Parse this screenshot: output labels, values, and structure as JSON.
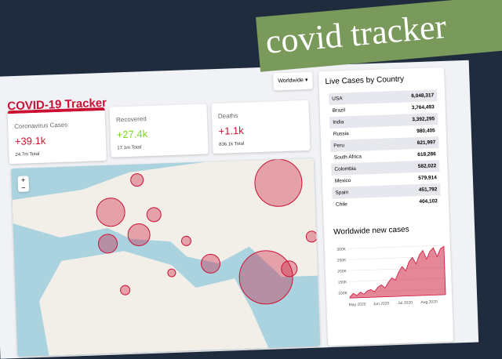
{
  "banner": "covid tracker",
  "app": {
    "title": "COVID-19 Tracker",
    "dropdown": "Worldwide",
    "cards": [
      {
        "title": "Coronavirus Cases",
        "today": "+39.1k",
        "total": "24.7m Total"
      },
      {
        "title": "Recovered",
        "today": "+27.4k",
        "total": "17.1m Total"
      },
      {
        "title": "Deaths",
        "today": "+1.1k",
        "total": "836.1k Total"
      }
    ],
    "map_controls": [
      "+",
      "−"
    ],
    "table": {
      "title": "Live Cases by Country",
      "rows": [
        [
          "USA",
          "6,048,317"
        ],
        [
          "Brazil",
          "3,764,493"
        ],
        [
          "India",
          "3,392,295"
        ],
        [
          "Russia",
          "980,405"
        ],
        [
          "Peru",
          "621,997"
        ],
        [
          "South Africa",
          "618,286"
        ],
        [
          "Colombia",
          "582,022"
        ],
        [
          "Mexico",
          "579,914"
        ],
        [
          "Spain",
          "451,792"
        ],
        [
          "Chile",
          "404,102"
        ]
      ]
    }
  },
  "chart_data": {
    "type": "area",
    "title": "Worldwide new cases",
    "color": "#cc1034",
    "x_labels": [
      "May 2020",
      "Jun 2020",
      "Jul 2020",
      "Aug 2020"
    ],
    "values": [
      80000,
      95000,
      85000,
      100000,
      90000,
      105000,
      110000,
      100000,
      120000,
      130000,
      115000,
      140000,
      160000,
      150000,
      185000,
      210000,
      190000,
      230000,
      250000,
      220000,
      260000,
      280000,
      240000,
      275000,
      290000,
      250000,
      285000,
      295000
    ],
    "ylim": [
      75000,
      325000
    ],
    "yticks": [
      {
        "value": 100000,
        "label": "100K"
      },
      {
        "value": 150000,
        "label": "150K"
      },
      {
        "value": 200000,
        "label": "200K"
      },
      {
        "value": 250000,
        "label": "250K"
      },
      {
        "value": 300000,
        "label": "300K"
      }
    ],
    "grid": true
  }
}
